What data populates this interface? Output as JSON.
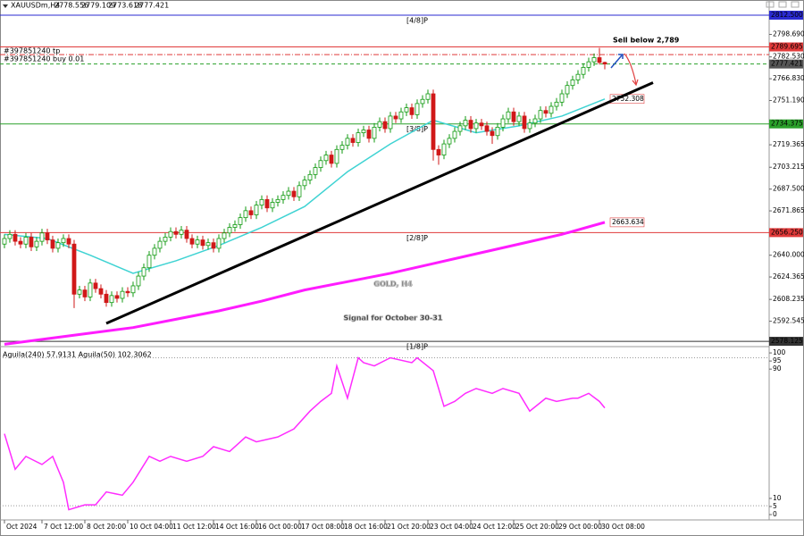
{
  "chart_data": [
    {
      "type": "candlestick",
      "title": "XAUUSDm,H4",
      "watermark": "GOLD, H4",
      "subtitle": "Signal for October 30-31",
      "annotation": "Sell below 2,789",
      "order_labels": [
        "#397851240 tp",
        "#397851240 buy 0.01"
      ],
      "up_color": "#109a10",
      "down_color": "#d01818",
      "grid": false,
      "xlim": [
        -0.83,
        142.5
      ],
      "ylim": [
        2575.6,
        2817.0
      ],
      "xticks": [
        {
          "value": 0,
          "label": "Oct 2024"
        },
        {
          "value": 7,
          "label": "7 Oct 12:00"
        },
        {
          "value": 15,
          "label": "8 Oct 20:00"
        },
        {
          "value": 23,
          "label": "10 Oct 04:00"
        },
        {
          "value": 31,
          "label": "11 Oct 12:00"
        },
        {
          "value": 39,
          "label": "14 Oct 16:00"
        },
        {
          "value": 47,
          "label": "16 Oct 00:00"
        },
        {
          "value": 55,
          "label": "17 Oct 08:00"
        },
        {
          "value": 63,
          "label": "18 Oct 16:00"
        },
        {
          "value": 71,
          "label": "21 Oct 20:00"
        },
        {
          "value": 79,
          "label": "23 Oct 04:00"
        },
        {
          "value": 87,
          "label": "24 Oct 12:00"
        },
        {
          "value": 95,
          "label": "25 Oct 20:00"
        },
        {
          "value": 103,
          "label": "29 Oct 00:00"
        },
        {
          "value": 111,
          "label": "30 Oct 08:00"
        }
      ],
      "yticks": [
        {
          "value": 2798.69,
          "label": "2798.690"
        },
        {
          "value": 2782.53,
          "label": "2782.530"
        },
        {
          "value": 2766.83,
          "label": "2766.830"
        },
        {
          "value": 2751.19,
          "label": "2751.190"
        },
        {
          "value": 2719.365,
          "label": "2719.365"
        },
        {
          "value": 2703.215,
          "label": "2703.215"
        },
        {
          "value": 2687.5,
          "label": "2687.500"
        },
        {
          "value": 2671.865,
          "label": "2671.865"
        },
        {
          "value": 2640.0,
          "label": "2640.000"
        },
        {
          "value": 2624.365,
          "label": "2624.365"
        },
        {
          "value": 2608.235,
          "label": "2608.235"
        },
        {
          "value": 2592.545,
          "label": "2592.545"
        }
      ],
      "levels": [
        {
          "value": 2812.5,
          "price_label": "2812.500",
          "tag": "[4/8]P",
          "color": "#2a2ad0",
          "style": "solid"
        },
        {
          "value": 2789.695,
          "price_label": "2789.695",
          "color": "#e03a3a",
          "style": "solid"
        },
        {
          "value": 2784.2,
          "color": "#e03a3a",
          "style": "dashdot"
        },
        {
          "value": 2777.421,
          "price_label": "2777.421",
          "color": "#2aa02a",
          "style": "dashed",
          "box_color": "#555555"
        },
        {
          "value": 2734.375,
          "price_label": "2734.375",
          "tag": "[3/8]P",
          "color": "#2aa02a",
          "style": "solid"
        },
        {
          "value": 2656.25,
          "price_label": "2656.250",
          "tag": "[2/8]P",
          "color": "#e03a3a",
          "style": "solid"
        },
        {
          "value": 2578.125,
          "price_label": "2578.125",
          "tag": "[1/8]P",
          "color": "#333333",
          "style": "solid"
        }
      ],
      "series": [
        {
          "color": "#3fd3d3",
          "x": [
            0,
            8,
            16,
            24,
            32,
            40,
            48,
            56,
            64,
            72,
            80,
            88,
            96,
            104,
            112
          ],
          "values": [
            2655,
            2652,
            2640,
            2627,
            2636,
            2647,
            2660,
            2675,
            2700,
            2720,
            2737,
            2728,
            2733,
            2740,
            2752.308
          ]
        },
        {
          "color": "#ff1cff",
          "x": [
            0,
            8,
            16,
            24,
            32,
            40,
            48,
            56,
            64,
            72,
            80,
            88,
            96,
            104,
            112
          ],
          "values": [
            2576,
            2580,
            2584,
            2588,
            2594,
            2600,
            2607,
            2615,
            2621,
            2627,
            2634,
            2641,
            2648,
            2655,
            2663.634
          ]
        }
      ],
      "trendline": {
        "color": "#000000",
        "x": [
          19,
          121
        ],
        "values": [
          2591,
          2764
        ]
      },
      "ohlc": [
        [
          2648,
          2655,
          2645,
          2652
        ],
        [
          2652,
          2658,
          2649,
          2655
        ],
        [
          2655,
          2658,
          2647,
          2650
        ],
        [
          2650,
          2653,
          2645,
          2648
        ],
        [
          2648,
          2656,
          2645,
          2653
        ],
        [
          2653,
          2656,
          2643,
          2646
        ],
        [
          2646,
          2653,
          2643,
          2650
        ],
        [
          2650,
          2659,
          2647,
          2656
        ],
        [
          2656,
          2659,
          2648,
          2651
        ],
        [
          2651,
          2654,
          2642,
          2645
        ],
        [
          2645,
          2652,
          2642,
          2649
        ],
        [
          2649,
          2655,
          2646,
          2652
        ],
        [
          2652,
          2655,
          2645,
          2648
        ],
        [
          2648,
          2651,
          2602,
          2612
        ],
        [
          2612,
          2618,
          2609,
          2615
        ],
        [
          2615,
          2618,
          2607,
          2610
        ],
        [
          2610,
          2623,
          2607,
          2620
        ],
        [
          2620,
          2623,
          2613,
          2616
        ],
        [
          2616,
          2619,
          2609,
          2612
        ],
        [
          2612,
          2615,
          2603,
          2606
        ],
        [
          2606,
          2614,
          2603,
          2611
        ],
        [
          2611,
          2614,
          2606,
          2609
        ],
        [
          2609,
          2617,
          2606,
          2614
        ],
        [
          2614,
          2617,
          2610,
          2613
        ],
        [
          2613,
          2621,
          2610,
          2618
        ],
        [
          2618,
          2628,
          2615,
          2625
        ],
        [
          2625,
          2634,
          2622,
          2631
        ],
        [
          2631,
          2643,
          2628,
          2640
        ],
        [
          2640,
          2648,
          2637,
          2645
        ],
        [
          2645,
          2653,
          2642,
          2650
        ],
        [
          2650,
          2656,
          2647,
          2653
        ],
        [
          2653,
          2660,
          2650,
          2657
        ],
        [
          2657,
          2660,
          2652,
          2655
        ],
        [
          2655,
          2661,
          2652,
          2658
        ],
        [
          2658,
          2661,
          2649,
          2652
        ],
        [
          2652,
          2655,
          2645,
          2648
        ],
        [
          2648,
          2654,
          2645,
          2651
        ],
        [
          2651,
          2654,
          2644,
          2647
        ],
        [
          2647,
          2652,
          2644,
          2649
        ],
        [
          2649,
          2652,
          2642,
          2645
        ],
        [
          2645,
          2655,
          2642,
          2652
        ],
        [
          2652,
          2659,
          2649,
          2656
        ],
        [
          2656,
          2663,
          2653,
          2660
        ],
        [
          2660,
          2665,
          2657,
          2662
        ],
        [
          2662,
          2670,
          2659,
          2667
        ],
        [
          2667,
          2675,
          2664,
          2672
        ],
        [
          2672,
          2675,
          2666,
          2669
        ],
        [
          2669,
          2679,
          2666,
          2676
        ],
        [
          2676,
          2683,
          2673,
          2680
        ],
        [
          2680,
          2683,
          2671,
          2674
        ],
        [
          2674,
          2681,
          2671,
          2678
        ],
        [
          2678,
          2683,
          2675,
          2680
        ],
        [
          2680,
          2686,
          2677,
          2683
        ],
        [
          2683,
          2689,
          2680,
          2686
        ],
        [
          2686,
          2689,
          2679,
          2682
        ],
        [
          2682,
          2693,
          2679,
          2690
        ],
        [
          2690,
          2697,
          2687,
          2694
        ],
        [
          2694,
          2701,
          2691,
          2698
        ],
        [
          2698,
          2706,
          2695,
          2703
        ],
        [
          2703,
          2711,
          2700,
          2708
        ],
        [
          2708,
          2715,
          2705,
          2712
        ],
        [
          2712,
          2715,
          2703,
          2706
        ],
        [
          2706,
          2719,
          2703,
          2716
        ],
        [
          2716,
          2722,
          2713,
          2719
        ],
        [
          2719,
          2727,
          2716,
          2724
        ],
        [
          2724,
          2727,
          2718,
          2721
        ],
        [
          2721,
          2731,
          2718,
          2728
        ],
        [
          2728,
          2733,
          2725,
          2730
        ],
        [
          2730,
          2733,
          2721,
          2724
        ],
        [
          2724,
          2735,
          2721,
          2732
        ],
        [
          2732,
          2739,
          2729,
          2736
        ],
        [
          2736,
          2739,
          2728,
          2731
        ],
        [
          2731,
          2743,
          2728,
          2740
        ],
        [
          2740,
          2743,
          2735,
          2738
        ],
        [
          2738,
          2746,
          2735,
          2743
        ],
        [
          2743,
          2749,
          2740,
          2746
        ],
        [
          2746,
          2749,
          2738,
          2741
        ],
        [
          2741,
          2752,
          2738,
          2749
        ],
        [
          2749,
          2755,
          2746,
          2752
        ],
        [
          2752,
          2759,
          2749,
          2756
        ],
        [
          2756,
          2759,
          2708,
          2716
        ],
        [
          2716,
          2719,
          2705,
          2712
        ],
        [
          2712,
          2723,
          2709,
          2720
        ],
        [
          2720,
          2727,
          2717,
          2724
        ],
        [
          2724,
          2732,
          2721,
          2729
        ],
        [
          2729,
          2736,
          2726,
          2733
        ],
        [
          2733,
          2740,
          2730,
          2737
        ],
        [
          2737,
          2740,
          2728,
          2731
        ],
        [
          2731,
          2738,
          2728,
          2735
        ],
        [
          2735,
          2738,
          2730,
          2733
        ],
        [
          2733,
          2736,
          2726,
          2729
        ],
        [
          2729,
          2732,
          2720,
          2726
        ],
        [
          2726,
          2735,
          2723,
          2732
        ],
        [
          2732,
          2741,
          2729,
          2738
        ],
        [
          2738,
          2746,
          2735,
          2743
        ],
        [
          2743,
          2746,
          2733,
          2736
        ],
        [
          2736,
          2743,
          2733,
          2740
        ],
        [
          2740,
          2743,
          2728,
          2731
        ],
        [
          2731,
          2738,
          2728,
          2735
        ],
        [
          2735,
          2741,
          2732,
          2738
        ],
        [
          2738,
          2747,
          2735,
          2744
        ],
        [
          2744,
          2747,
          2739,
          2742
        ],
        [
          2742,
          2750,
          2739,
          2747
        ],
        [
          2747,
          2753,
          2744,
          2750
        ],
        [
          2750,
          2759,
          2747,
          2756
        ],
        [
          2756,
          2765,
          2753,
          2762
        ],
        [
          2762,
          2769,
          2759,
          2766
        ],
        [
          2766,
          2773,
          2763,
          2770
        ],
        [
          2770,
          2778,
          2767,
          2775
        ],
        [
          2775,
          2782,
          2772,
          2779
        ],
        [
          2779,
          2785,
          2776,
          2782
        ],
        [
          2782,
          2789,
          2777,
          2778.556
        ],
        [
          2778.556,
          2779.109,
          2773.618,
          2777.421
        ]
      ]
    },
    {
      "type": "line",
      "title": "Aguila(240) 57.9131 Aguila(50) 102.3062",
      "xlim": [
        -0.83,
        142.5
      ],
      "ylim": [
        -2.2,
        102.8
      ],
      "yticks": [
        0,
        5,
        10,
        90,
        95,
        100
      ],
      "reference_lines": [
        97,
        5.5
      ],
      "series": [
        {
          "color": "#ff2cff",
          "x": [
            0,
            2,
            4,
            7,
            9,
            11,
            12,
            15,
            17,
            19,
            22,
            24,
            27,
            29,
            31,
            34,
            37,
            39,
            42,
            45,
            47,
            51,
            54,
            57,
            59,
            61,
            62,
            64,
            66,
            67,
            69,
            72,
            76,
            77,
            80,
            82,
            84,
            86,
            88,
            91,
            93,
            96,
            98,
            101,
            103,
            106,
            107,
            109,
            111,
            112
          ],
          "values": [
            50,
            28,
            36,
            31,
            36,
            20,
            3,
            6,
            6,
            14,
            12,
            20,
            36,
            33,
            36,
            33,
            36,
            42,
            39,
            48,
            45,
            48,
            53,
            64,
            70,
            75,
            92,
            72,
            97,
            94,
            92,
            97,
            94,
            97,
            89,
            67,
            70,
            75,
            78,
            75,
            78,
            75,
            64,
            72,
            70,
            72,
            72,
            75,
            70,
            66
          ]
        }
      ]
    }
  ]
}
